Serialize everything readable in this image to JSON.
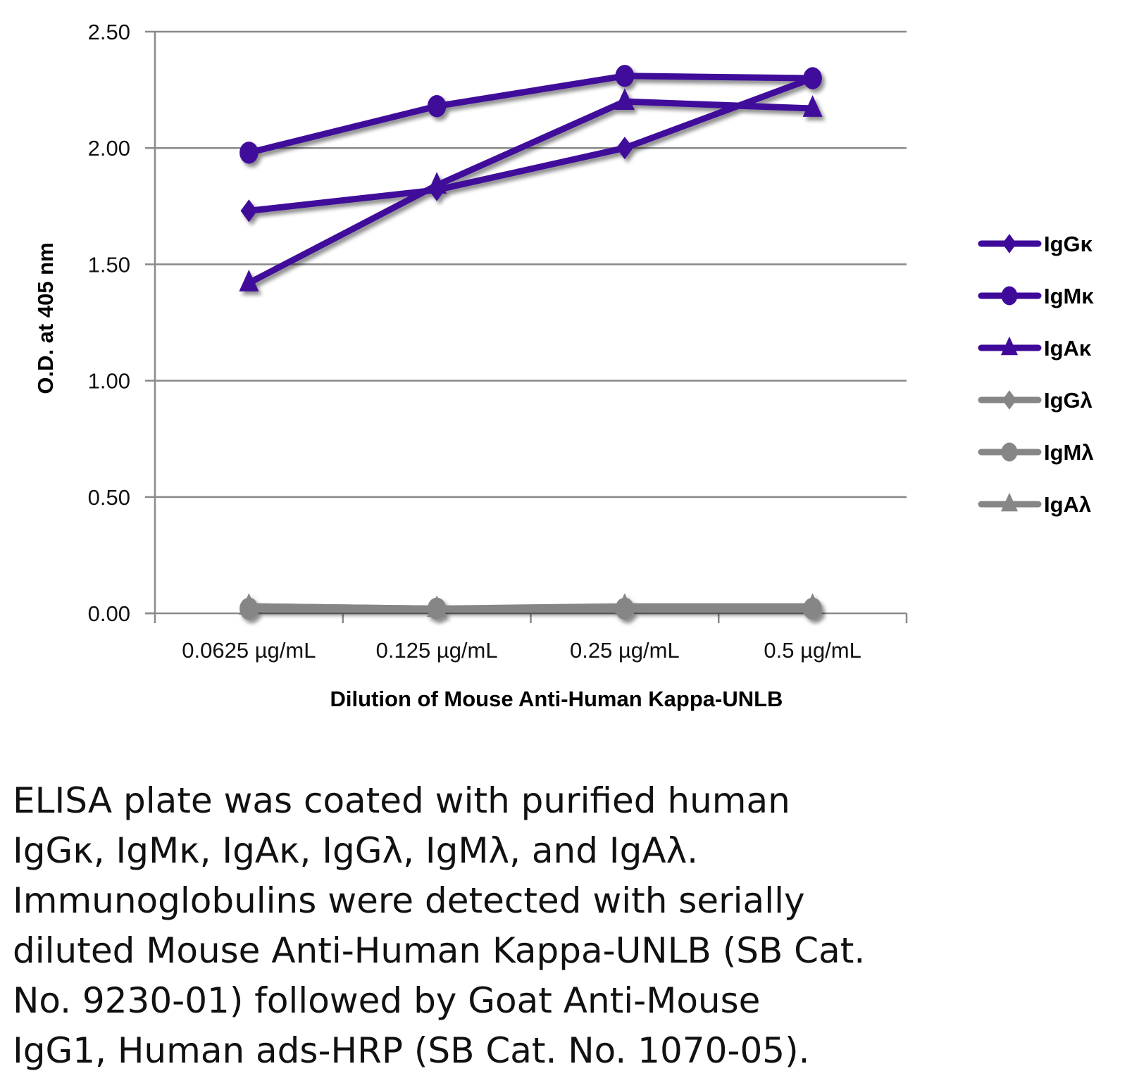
{
  "chart_data": {
    "type": "line",
    "title": "",
    "xlabel": "Dilution of Mouse Anti-Human Kappa-UNLB",
    "ylabel": "O.D. at 405 nm",
    "categories": [
      "0.0625 µg/mL",
      "0.125 µg/mL",
      "0.25 µg/mL",
      "0.5 µg/mL"
    ],
    "ylim": [
      0,
      2.5
    ],
    "yticks": [
      "0.00",
      "0.50",
      "1.00",
      "1.50",
      "2.00",
      "2.50"
    ],
    "ytick_values": [
      0,
      0.5,
      1.0,
      1.5,
      2.0,
      2.5
    ],
    "grid": true,
    "legend_position": "right",
    "series": [
      {
        "name": "IgGκ",
        "marker": "diamond",
        "color": "#3f0a9a",
        "values": [
          1.73,
          1.82,
          2.0,
          2.3
        ]
      },
      {
        "name": "IgMκ",
        "marker": "circle",
        "color": "#3f0a9a",
        "values": [
          1.98,
          2.18,
          2.31,
          2.3
        ]
      },
      {
        "name": "IgAκ",
        "marker": "triangle",
        "color": "#3f0a9a",
        "values": [
          1.42,
          1.84,
          2.2,
          2.17
        ]
      },
      {
        "name": "IgGλ",
        "marker": "diamond",
        "color": "#868686",
        "values": [
          0.03,
          0.02,
          0.02,
          0.02
        ]
      },
      {
        "name": "IgMλ",
        "marker": "circle",
        "color": "#868686",
        "values": [
          0.02,
          0.02,
          0.02,
          0.02
        ]
      },
      {
        "name": "IgAλ",
        "marker": "triangle",
        "color": "#868686",
        "values": [
          0.03,
          0.02,
          0.03,
          0.03
        ]
      }
    ]
  },
  "caption": {
    "lines": [
      "ELISA plate was coated with purified human",
      "IgGκ, IgMκ, IgAκ, IgGλ, IgMλ, and IgAλ.",
      "Immunoglobulins were detected with serially",
      "diluted Mouse Anti-Human Kappa-UNLB (SB Cat.",
      "No. 9230-01) followed by Goat Anti-Mouse",
      "IgG1, Human ads-HRP (SB Cat. No. 1070-05)."
    ]
  }
}
